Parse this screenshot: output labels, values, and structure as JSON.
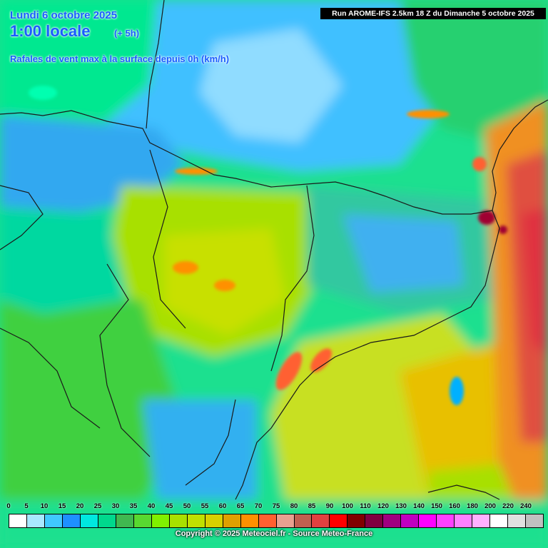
{
  "header": {
    "date": "Lundi 6 octobre 2025",
    "time": "1:00 locale",
    "lead": "(+ 5h)",
    "parameter": "Rafales de vent max à la surface depuis 0h (km/h)",
    "run": "Run AROME-IFS 2.5km 18 Z du Dimanche 5 octobre 2025"
  },
  "legend": {
    "labels": [
      "0",
      "5",
      "10",
      "15",
      "20",
      "25",
      "30",
      "35",
      "40",
      "45",
      "50",
      "55",
      "60",
      "65",
      "70",
      "75",
      "80",
      "85",
      "90",
      "100",
      "110",
      "120",
      "130",
      "140",
      "150",
      "160",
      "180",
      "200",
      "220",
      "240"
    ],
    "colors": [
      "#ffffff",
      "#a8e8ff",
      "#40c8ff",
      "#1e90ff",
      "#00e8e0",
      "#00d88c",
      "#40b850",
      "#58d830",
      "#80f000",
      "#a8e000",
      "#c0e000",
      "#d8d000",
      "#e0a000",
      "#ff9000",
      "#ff6030",
      "#e8a090",
      "#c06050",
      "#e04040",
      "#ff0000",
      "#800000",
      "#800040",
      "#a00080",
      "#c000c0",
      "#ff00ff",
      "#ff40ff",
      "#ff80ff",
      "#ffb0ff",
      "#ffffff",
      "#e0e0e0",
      "#c0c0c0"
    ]
  },
  "copyright": "Copyright © 2025 Meteociel.fr - Source Meteo-France"
}
